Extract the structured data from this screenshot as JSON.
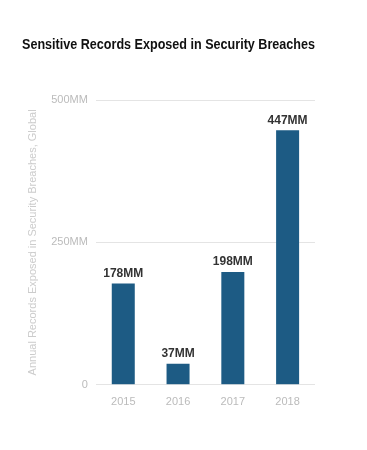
{
  "chart_data": {
    "type": "bar",
    "title": "Sensitive Records Exposed in Security Breaches",
    "y_label": "Annual Records Exposed in Security Breaches, Global",
    "categories": [
      "2015",
      "2016",
      "2017",
      "2018"
    ],
    "values": [
      178,
      37,
      198,
      447
    ],
    "value_labels": [
      "178MM",
      "37MM",
      "198MM",
      "447MM"
    ],
    "color": "#1d5b84",
    "ylim": [
      0,
      500
    ],
    "yticks": [
      0,
      {
        "value": 250,
        "label": "250MM"
      },
      {
        "value": 500,
        "label": "500MM"
      }
    ],
    "grid": true,
    "data_labels": true
  }
}
